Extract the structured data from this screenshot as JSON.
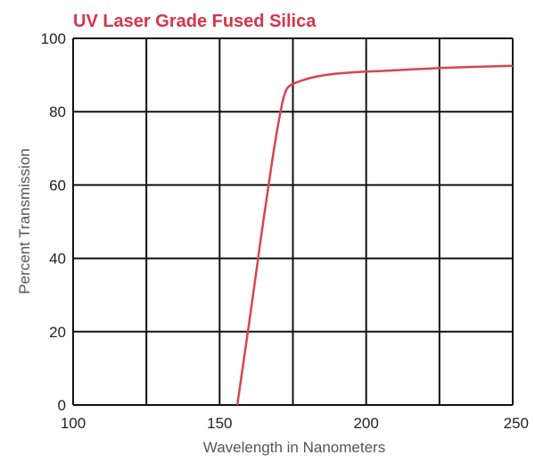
{
  "chart_data": {
    "type": "line",
    "title": "UV Laser Grade Fused Silica",
    "xlabel": "Wavelength in Nanometers",
    "ylabel": "Percent Transmission",
    "xlim": [
      100,
      250
    ],
    "ylim": [
      0,
      100
    ],
    "xticks": [
      100,
      150,
      200,
      250
    ],
    "yticks": [
      0,
      20,
      40,
      60,
      80,
      100
    ],
    "x_gridlines": [
      100,
      125,
      150,
      175,
      200,
      225,
      250
    ],
    "y_gridlines": [
      0,
      20,
      40,
      60,
      80,
      100
    ],
    "grid": true,
    "series": [
      {
        "color": "#d94452",
        "x": [
          156,
          160,
          164,
          168,
          171,
          172.5,
          173.5,
          175,
          178,
          182,
          188,
          195,
          205,
          215,
          225,
          235,
          250
        ],
        "y": [
          0,
          22,
          45,
          67,
          81,
          85.5,
          86.8,
          87.6,
          88.5,
          89.4,
          90.2,
          90.7,
          91.1,
          91.5,
          91.9,
          92.2,
          92.5
        ]
      }
    ],
    "title_color": "#d9334a",
    "grid_color": "#111111"
  }
}
